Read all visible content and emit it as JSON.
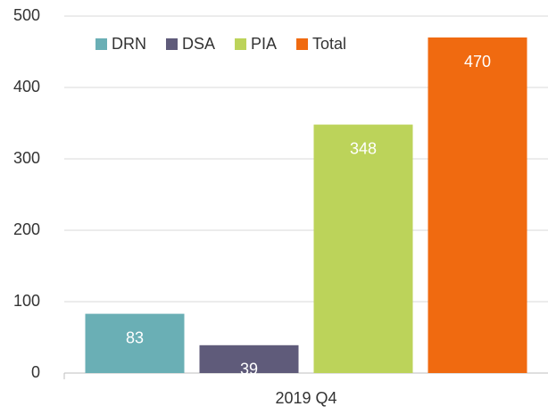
{
  "chart_data": {
    "type": "bar",
    "categories": [
      "2019 Q4"
    ],
    "series": [
      {
        "name": "DRN",
        "color": "#6aafb5",
        "values": [
          83
        ]
      },
      {
        "name": "DSA",
        "color": "#5f5b7a",
        "values": [
          39
        ]
      },
      {
        "name": "PIA",
        "color": "#bcd35a",
        "values": [
          348
        ]
      },
      {
        "name": "Total",
        "color": "#f06a10",
        "values": [
          470
        ]
      }
    ],
    "ylim": [
      0,
      500
    ],
    "yticks": [
      0,
      100,
      200,
      300,
      400,
      500
    ],
    "grid": true,
    "legend": "top"
  }
}
